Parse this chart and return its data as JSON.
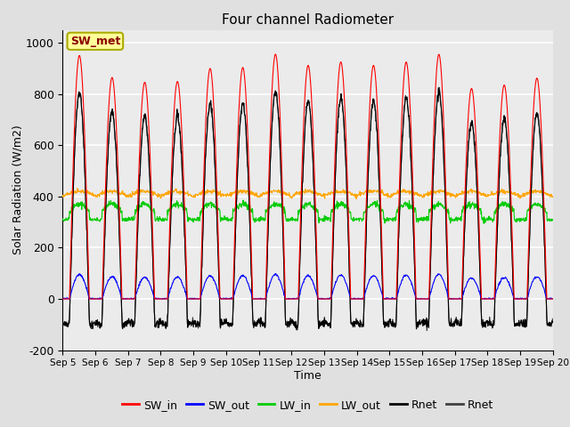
{
  "title": "Four channel Radiometer",
  "xlabel": "Time",
  "ylabel": "Solar Radiation (W/m2)",
  "ylim": [
    -200,
    1050
  ],
  "xtick_labels": [
    "Sep 5",
    "Sep 6",
    "Sep 7",
    "Sep 8",
    "Sep 9",
    "Sep 10",
    "Sep 11",
    "Sep 12",
    "Sep 13",
    "Sep 14",
    "Sep 15",
    "Sep 16",
    "Sep 17",
    "Sep 18",
    "Sep 19",
    "Sep 20"
  ],
  "annotation_text": "SW_met",
  "annotation_color": "#8B0000",
  "annotation_bg": "#FFFF99",
  "colors": {
    "SW_in": "#FF0000",
    "SW_out": "#0000FF",
    "LW_in": "#00CC00",
    "LW_out": "#FFA500",
    "Rnet1": "#000000",
    "Rnet2": "#404040"
  },
  "legend_labels": [
    "SW_in",
    "SW_out",
    "LW_in",
    "LW_out",
    "Rnet",
    "Rnet"
  ],
  "background_color": "#E0E0E0",
  "plot_bg": "#EBEBEB",
  "lw": 0.8
}
